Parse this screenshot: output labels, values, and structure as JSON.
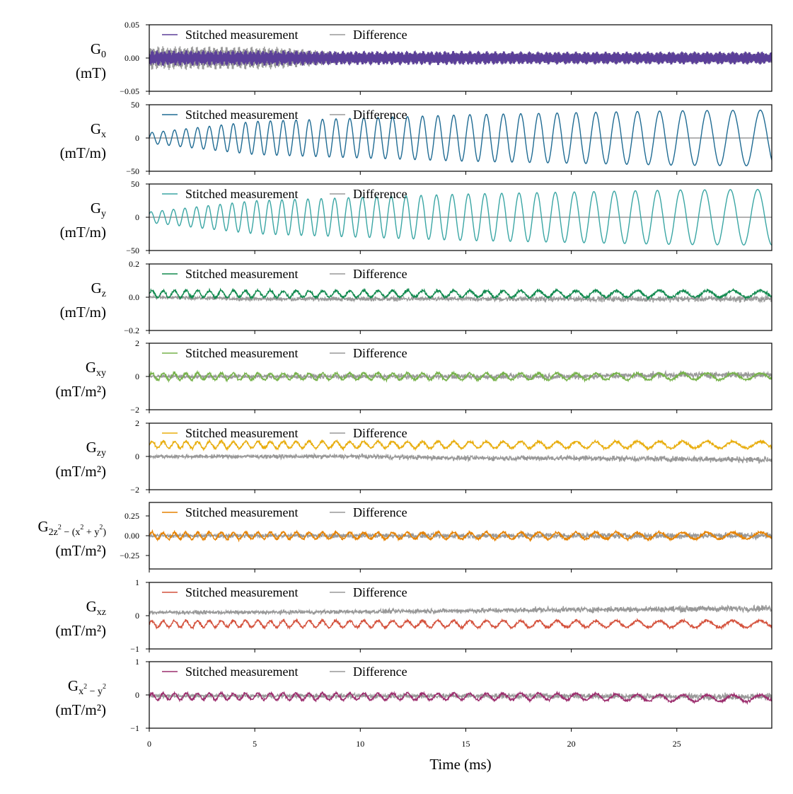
{
  "chart_data": {
    "type": "line",
    "shared_x": {
      "label": "Time (ms)",
      "range": [
        0,
        29.5
      ],
      "ticks": [
        0,
        5,
        10,
        15,
        20,
        25
      ],
      "tick_labels": [
        "0",
        "5",
        "10",
        "15",
        "20",
        "25"
      ]
    },
    "legend_labels": [
      "Stitched measurement",
      "Difference"
    ],
    "legend_position": "upper-left",
    "difference_color": "#999999",
    "panels": [
      {
        "id": "g0",
        "label_main": "G",
        "label_sub": "0",
        "label_unit": "(mT)",
        "color": "#5b3f99",
        "ylim": [
          -0.05,
          0.05
        ],
        "yticks": [
          -0.05,
          0.0,
          0.05
        ],
        "ytick_labels": [
          "−0.05",
          "0.00",
          "0.05"
        ],
        "series": [
          {
            "name": "Stitched measurement",
            "x": [
              0,
              3,
              6,
              9,
              12,
              15,
              18,
              21,
              24,
              27,
              29.5
            ],
            "y_envelope": [
              0.012,
              0.012,
              0.012,
              0.011,
              0.011,
              0.011,
              0.01,
              0.01,
              0.01,
              0.01,
              0.01
            ]
          },
          {
            "name": "Difference",
            "x": [
              0,
              3,
              6,
              9,
              12,
              15,
              18,
              21,
              24,
              27,
              29.5
            ],
            "y_envelope": [
              0.018,
              0.018,
              0.017,
              0.009,
              0.008,
              0.008,
              0.008,
              0.008,
              0.008,
              0.008,
              0.008
            ]
          }
        ]
      },
      {
        "id": "gx",
        "label_main": "G",
        "label_sub": "x",
        "label_unit": "(mT/m)",
        "color": "#1f6b93",
        "ylim": [
          -50,
          50
        ],
        "yticks": [
          -50,
          0,
          50
        ],
        "ytick_labels": [
          "−50",
          "0",
          "50"
        ],
        "series": [
          {
            "name": "Stitched measurement",
            "x": [
              0,
              5,
              10,
              15,
              20,
              25,
              29.5
            ],
            "y_envelope": [
              8,
              25,
              30,
              35,
              38,
              41,
              42
            ]
          },
          {
            "name": "Difference",
            "x": [
              0,
              29.5
            ],
            "y": [
              0,
              0
            ]
          }
        ]
      },
      {
        "id": "gy",
        "label_main": "G",
        "label_sub": "y",
        "label_unit": "(mT/m)",
        "color": "#3aa6a4",
        "ylim": [
          -50,
          50
        ],
        "yticks": [
          -50,
          0,
          50
        ],
        "ytick_labels": [
          "−50",
          "0",
          "50"
        ],
        "series": [
          {
            "name": "Stitched measurement",
            "x": [
              0,
              5,
              10,
              15,
              20,
              25,
              29.5
            ],
            "y_envelope": [
              8,
              25,
              30,
              35,
              38,
              41,
              42
            ]
          },
          {
            "name": "Difference",
            "x": [
              0,
              29.5
            ],
            "y": [
              0,
              0
            ]
          }
        ]
      },
      {
        "id": "gz",
        "label_main": "G",
        "label_sub": "z",
        "label_unit": "(mT/m)",
        "color": "#128a4f",
        "ylim": [
          -0.2,
          0.2
        ],
        "yticks": [
          -0.2,
          0.0,
          0.2
        ],
        "ytick_labels": [
          "−0.2",
          "0.0",
          "0.2"
        ],
        "series": [
          {
            "name": "Stitched measurement",
            "x": [
              0,
              5,
              10,
              15,
              20,
              25,
              29.5
            ],
            "y": [
              0.02,
              0.02,
              0.02,
              0.02,
              0.02,
              0.02,
              0.02
            ]
          },
          {
            "name": "Difference",
            "x": [
              0,
              5,
              10,
              15,
              20,
              25,
              29.5
            ],
            "y": [
              0.0,
              -0.01,
              -0.01,
              -0.01,
              -0.01,
              -0.01,
              -0.01
            ]
          }
        ]
      },
      {
        "id": "gxy",
        "label_main": "G",
        "label_sub": "xy",
        "label_unit": "(mT/m²)",
        "color": "#76b24a",
        "ylim": [
          -2,
          2
        ],
        "yticks": [
          -2,
          0,
          2
        ],
        "ytick_labels": [
          "−2",
          "0",
          "2"
        ],
        "series": [
          {
            "name": "Stitched measurement",
            "x": [
              0,
              5,
              10,
              15,
              20,
              25,
              29.5
            ],
            "y": [
              0,
              0,
              0,
              0,
              0,
              0,
              0
            ]
          },
          {
            "name": "Difference",
            "x": [
              0,
              5,
              10,
              15,
              20,
              25,
              29.5
            ],
            "y": [
              0,
              0,
              0,
              0,
              0,
              0.1,
              0.1
            ]
          }
        ]
      },
      {
        "id": "gzy",
        "label_main": "G",
        "label_sub": "zy",
        "label_unit": "(mT/m²)",
        "color": "#e8ad0d",
        "ylim": [
          -2,
          2
        ],
        "yticks": [
          -2,
          0,
          2
        ],
        "ytick_labels": [
          "−2",
          "0",
          "2"
        ],
        "series": [
          {
            "name": "Stitched measurement",
            "x": [
              0,
              5,
              10,
              15,
              20,
              25,
              29.5
            ],
            "y": [
              0.7,
              0.7,
              0.7,
              0.7,
              0.7,
              0.7,
              0.7
            ]
          },
          {
            "name": "Difference",
            "x": [
              0,
              5,
              10,
              15,
              20,
              25,
              29.5
            ],
            "y": [
              0,
              0,
              0,
              -0.1,
              -0.1,
              -0.15,
              -0.2
            ]
          }
        ]
      },
      {
        "id": "g2z2",
        "label_main": "G",
        "label_sub": "2z",
        "label_sub_sup": "2",
        "label_sub_rest": " − (x",
        "label_sub_sup2": "2",
        "label_sub_rest2": " + y",
        "label_sub_sup3": "2",
        "label_sub_end": ")",
        "label_unit": "(mT/m²)",
        "color": "#e68200",
        "ylim": [
          -0.42,
          0.42
        ],
        "yticks": [
          -0.25,
          0.0,
          0.25
        ],
        "ytick_labels": [
          "−0.25",
          "0.00",
          "0.25"
        ],
        "series": [
          {
            "name": "Stitched measurement",
            "x": [
              0,
              5,
              10,
              15,
              20,
              25,
              29.5
            ],
            "y": [
              0,
              0,
              0,
              0,
              0,
              0,
              0
            ]
          },
          {
            "name": "Difference",
            "x": [
              0,
              5,
              10,
              15,
              20,
              25,
              29.5
            ],
            "y": [
              0,
              0,
              0,
              0,
              0,
              0,
              0
            ]
          }
        ]
      },
      {
        "id": "gxz",
        "label_main": "G",
        "label_sub": "xz",
        "label_unit": "(mT/m²)",
        "color": "#d4513c",
        "ylim": [
          -1,
          1
        ],
        "yticks": [
          -1,
          0,
          1
        ],
        "ytick_labels": [
          "−1",
          "0",
          "1"
        ],
        "series": [
          {
            "name": "Stitched measurement",
            "x": [
              0,
              5,
              10,
              15,
              20,
              25,
              29.5
            ],
            "y": [
              -0.25,
              -0.25,
              -0.25,
              -0.25,
              -0.25,
              -0.25,
              -0.25
            ]
          },
          {
            "name": "Difference",
            "x": [
              0,
              5,
              10,
              15,
              20,
              25,
              29.5
            ],
            "y": [
              0.1,
              0.1,
              0.12,
              0.15,
              0.18,
              0.2,
              0.22
            ]
          }
        ]
      },
      {
        "id": "gx2y2",
        "label_main": "G",
        "label_sub": "x",
        "label_sub_sup": "2",
        "label_sub_rest": " − y",
        "label_sub_sup2": "2",
        "label_unit": "(mT/m²)",
        "color": "#9c2e6e",
        "ylim": [
          -1,
          1
        ],
        "yticks": [
          -1,
          0,
          1
        ],
        "ytick_labels": [
          "−1",
          "0",
          "1"
        ],
        "series": [
          {
            "name": "Stitched measurement",
            "x": [
              0,
              5,
              10,
              15,
              20,
              25,
              29.5
            ],
            "y": [
              -0.05,
              -0.05,
              -0.05,
              -0.05,
              -0.05,
              -0.1,
              -0.1
            ]
          },
          {
            "name": "Difference",
            "x": [
              0,
              5,
              10,
              15,
              20,
              25,
              29.5
            ],
            "y": [
              -0.03,
              -0.03,
              -0.03,
              -0.03,
              -0.03,
              -0.05,
              -0.05
            ]
          }
        ]
      }
    ]
  }
}
